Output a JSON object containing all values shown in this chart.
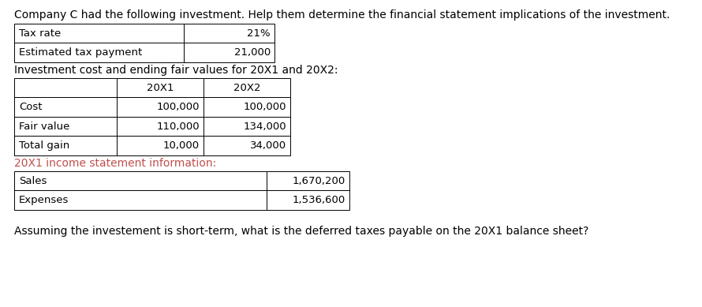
{
  "title": "Company C had the following investment. Help them determine the financial statement implications of the investment.",
  "title_color": "#000000",
  "title_fontsize": 10.0,
  "bg_color": "#ffffff",
  "table1_rows": [
    [
      "Tax rate",
      "21%"
    ],
    [
      "Estimated tax payment",
      "21,000"
    ]
  ],
  "table2_label": "Investment cost and ending fair values for 20X1 and 20X2:",
  "table2_label_color": "#000000",
  "table2_header": [
    "",
    "20X1",
    "20X2"
  ],
  "table2_rows": [
    [
      "Cost",
      "100,000",
      "100,000"
    ],
    [
      "Fair value",
      "110,000",
      "134,000"
    ],
    [
      "Total gain",
      "10,000",
      "34,000"
    ]
  ],
  "table3_label": "20X1 income statement information:",
  "table3_label_color": "#c0504d",
  "table3_rows": [
    [
      "Sales",
      "1,670,200"
    ],
    [
      "Expenses",
      "1,536,600"
    ]
  ],
  "question": "Assuming the investement is short-term, what is the deferred taxes payable on the 20X1 balance sheet?",
  "question_color": "#000000",
  "question_fontsize": 10.0,
  "font_family": "DejaVu Sans",
  "cell_fontsize": 9.5,
  "label_fontsize": 10.0
}
